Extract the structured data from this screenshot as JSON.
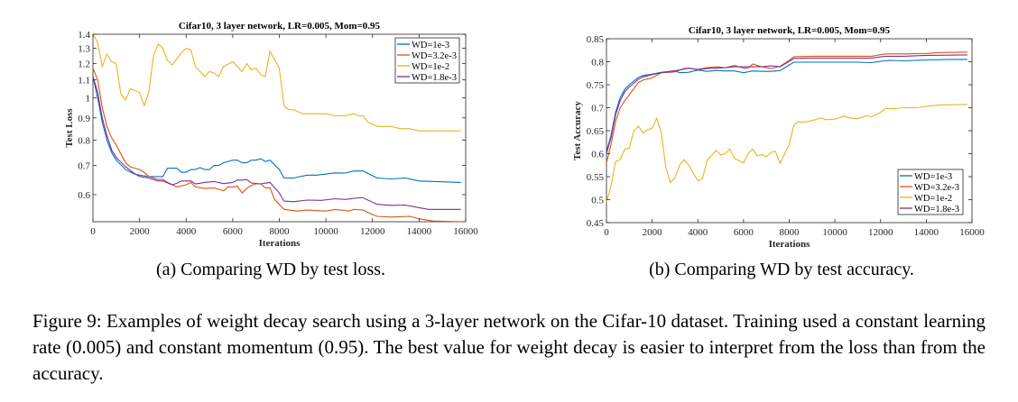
{
  "colors": {
    "WD=1e-3": "#0072BD",
    "WD=3.2e-3": "#D95319",
    "WD=1e-2": "#EDB120",
    "WD=1.8e-3": "#7E2F8E"
  },
  "subcaptions": {
    "a": "(a) Comparing WD by test loss.",
    "b": "(b) Comparing WD by test accuracy."
  },
  "figure_caption": "Figure 9: Examples of weight decay search using a 3-layer network on the Cifar-10 dataset. Training used a constant learning rate (0.005) and constant momentum (0.95). The best value for weight decay is easier to interpret from the loss than from the accuracy.",
  "chart_data": [
    {
      "type": "line",
      "title": "Cifar10, 3 layer network, LR=0.005, Mom=0.95",
      "xlabel": "Iterations",
      "ylabel": "Test Loss",
      "xlim": [
        0,
        16000
      ],
      "ylim": [
        0.52,
        1.4
      ],
      "yscale": "log",
      "xticks": [
        0,
        2000,
        4000,
        6000,
        8000,
        10000,
        12000,
        14000,
        16000
      ],
      "yticks": [
        0.6,
        0.7,
        0.8,
        0.9,
        1,
        1.1,
        1.2,
        1.3,
        1.4
      ],
      "yticklabels": [
        "0.6",
        "0.7",
        "0.8",
        "0.9",
        "1",
        "1.1",
        "1.2",
        "1.3",
        "1.4"
      ],
      "legend": "top-right",
      "series": [
        {
          "name": "WD=1e-3",
          "x": [
            0,
            200,
            400,
            600,
            800,
            1000,
            1400,
            1800,
            2000,
            2400,
            3000,
            3200,
            3600,
            3800,
            4000,
            4200,
            4400,
            4600,
            4800,
            5000,
            5200,
            5400,
            5600,
            6000,
            6200,
            6400,
            6600,
            6800,
            7000,
            7200,
            7400,
            7600,
            8000,
            8200,
            8600,
            9200,
            9600,
            10400,
            10800,
            11200,
            11600,
            12200,
            12800,
            13400,
            14000,
            15800
          ],
          "y": [
            1.12,
            1.0,
            0.88,
            0.8,
            0.75,
            0.72,
            0.685,
            0.668,
            0.665,
            0.66,
            0.66,
            0.69,
            0.69,
            0.675,
            0.675,
            0.685,
            0.685,
            0.692,
            0.685,
            0.685,
            0.7,
            0.7,
            0.71,
            0.72,
            0.72,
            0.71,
            0.71,
            0.72,
            0.72,
            0.725,
            0.715,
            0.72,
            0.685,
            0.655,
            0.655,
            0.665,
            0.665,
            0.673,
            0.672,
            0.68,
            0.68,
            0.655,
            0.652,
            0.655,
            0.645,
            0.64
          ]
        },
        {
          "name": "WD=3.2e-3",
          "x": [
            0,
            200,
            400,
            600,
            800,
            1000,
            1400,
            1600,
            2000,
            2200,
            2400,
            2800,
            3000,
            3200,
            3600,
            4000,
            4200,
            4400,
            4800,
            5200,
            5600,
            5800,
            6000,
            6200,
            6400,
            6600,
            6800,
            7000,
            7200,
            7400,
            7600,
            7800,
            8200,
            8800,
            9200,
            10000,
            10400,
            11000,
            11200,
            11600,
            12000,
            12200,
            12800,
            13600,
            14000,
            14600,
            15800
          ],
          "y": [
            1.17,
            1.1,
            0.95,
            0.86,
            0.81,
            0.78,
            0.71,
            0.695,
            0.685,
            0.675,
            0.66,
            0.65,
            0.65,
            0.64,
            0.625,
            0.632,
            0.64,
            0.625,
            0.62,
            0.622,
            0.612,
            0.625,
            0.625,
            0.628,
            0.605,
            0.62,
            0.63,
            0.635,
            0.635,
            0.622,
            0.622,
            0.585,
            0.555,
            0.55,
            0.553,
            0.55,
            0.555,
            0.55,
            0.555,
            0.553,
            0.54,
            0.535,
            0.533,
            0.535,
            0.528,
            0.522,
            0.52
          ]
        },
        {
          "name": "WD=1e-2",
          "x": [
            0,
            200,
            400,
            600,
            800,
            1000,
            1200,
            1400,
            1600,
            2000,
            2200,
            2400,
            2600,
            2800,
            3000,
            3200,
            3400,
            3800,
            4000,
            4200,
            4400,
            4800,
            5000,
            5200,
            5400,
            5600,
            6000,
            6400,
            6600,
            6800,
            7000,
            7200,
            7400,
            7600,
            8000,
            8200,
            8400,
            8600,
            8800,
            9000,
            9400,
            9600,
            10000,
            10400,
            10800,
            11200,
            11400,
            11600,
            11800,
            12000,
            12200,
            12800,
            13200,
            13600,
            14000,
            15000,
            15800
          ],
          "y": [
            1.4,
            1.34,
            1.18,
            1.26,
            1.21,
            1.2,
            1.02,
            0.99,
            1.05,
            1.03,
            0.96,
            1.03,
            1.25,
            1.33,
            1.3,
            1.22,
            1.19,
            1.27,
            1.3,
            1.29,
            1.18,
            1.12,
            1.15,
            1.14,
            1.12,
            1.18,
            1.21,
            1.15,
            1.2,
            1.16,
            1.17,
            1.13,
            1.12,
            1.28,
            1.17,
            0.96,
            0.94,
            0.94,
            0.93,
            0.92,
            0.92,
            0.92,
            0.92,
            0.91,
            0.91,
            0.92,
            0.91,
            0.91,
            0.88,
            0.87,
            0.86,
            0.86,
            0.85,
            0.85,
            0.84,
            0.84,
            0.84
          ]
        },
        {
          "name": "WD=1.8e-3",
          "x": [
            0,
            200,
            400,
            600,
            800,
            1000,
            1400,
            1800,
            2000,
            2400,
            2800,
            3000,
            3400,
            3600,
            3800,
            4200,
            4400,
            4800,
            5200,
            5600,
            6000,
            6200,
            6400,
            6600,
            6800,
            7200,
            7600,
            8000,
            8200,
            8600,
            9200,
            9800,
            10400,
            10800,
            11400,
            11600,
            12200,
            12800,
            13400,
            14000,
            14400,
            15800
          ],
          "y": [
            1.12,
            1.03,
            0.9,
            0.82,
            0.76,
            0.73,
            0.695,
            0.67,
            0.66,
            0.655,
            0.645,
            0.645,
            0.632,
            0.637,
            0.645,
            0.645,
            0.635,
            0.64,
            0.643,
            0.636,
            0.64,
            0.648,
            0.648,
            0.65,
            0.638,
            0.635,
            0.64,
            0.605,
            0.58,
            0.578,
            0.583,
            0.582,
            0.587,
            0.585,
            0.59,
            0.59,
            0.57,
            0.567,
            0.568,
            0.56,
            0.555,
            0.555
          ]
        }
      ]
    },
    {
      "type": "line",
      "title": "Cifar10, 3 layer network, LR=0.005, Mom=0.95",
      "xlabel": "Iterations",
      "ylabel": "Test Accuracy",
      "xlim": [
        0,
        16000
      ],
      "ylim": [
        0.45,
        0.85
      ],
      "yscale": "linear",
      "xticks": [
        0,
        2000,
        4000,
        6000,
        8000,
        10000,
        12000,
        14000,
        16000
      ],
      "yticks": [
        0.45,
        0.5,
        0.55,
        0.6,
        0.65,
        0.7,
        0.75,
        0.8,
        0.85
      ],
      "yticklabels": [
        "0.45",
        "0.5",
        "0.55",
        "0.6",
        "0.65",
        "0.7",
        "0.75",
        "0.8",
        "0.85"
      ],
      "legend": "bottom-right",
      "series": [
        {
          "name": "WD=1e-3",
          "x": [
            0,
            200,
            400,
            600,
            800,
            1000,
            1400,
            1600,
            2000,
            2400,
            2800,
            3000,
            3200,
            3600,
            4000,
            4400,
            4800,
            5200,
            5600,
            6000,
            6400,
            6800,
            7200,
            7600,
            8000,
            8200,
            9000,
            10000,
            11000,
            11600,
            12000,
            12400,
            13000,
            14000,
            15000,
            15800
          ],
          "y": [
            0.605,
            0.64,
            0.69,
            0.722,
            0.74,
            0.75,
            0.766,
            0.77,
            0.773,
            0.777,
            0.779,
            0.78,
            0.776,
            0.777,
            0.782,
            0.779,
            0.781,
            0.78,
            0.78,
            0.776,
            0.78,
            0.779,
            0.779,
            0.781,
            0.793,
            0.799,
            0.799,
            0.799,
            0.799,
            0.798,
            0.801,
            0.803,
            0.802,
            0.804,
            0.805,
            0.805
          ]
        },
        {
          "name": "WD=3.2e-3",
          "x": [
            0,
            200,
            400,
            600,
            800,
            1000,
            1400,
            1600,
            2000,
            2400,
            2800,
            3000,
            3400,
            3600,
            4000,
            4400,
            4800,
            5200,
            5600,
            6000,
            6200,
            6400,
            6800,
            7200,
            7600,
            8000,
            8200,
            9000,
            10000,
            11000,
            11600,
            12200,
            13000,
            14000,
            14600,
            15800
          ],
          "y": [
            0.58,
            0.62,
            0.67,
            0.7,
            0.715,
            0.728,
            0.755,
            0.76,
            0.765,
            0.776,
            0.777,
            0.778,
            0.785,
            0.786,
            0.783,
            0.787,
            0.789,
            0.787,
            0.792,
            0.786,
            0.786,
            0.795,
            0.789,
            0.785,
            0.79,
            0.803,
            0.811,
            0.812,
            0.812,
            0.812,
            0.812,
            0.817,
            0.817,
            0.818,
            0.82,
            0.821
          ]
        },
        {
          "name": "WD=1e-2",
          "x": [
            0,
            200,
            400,
            600,
            800,
            1000,
            1200,
            1400,
            1600,
            1800,
            2000,
            2200,
            2400,
            2600,
            2800,
            3000,
            3200,
            3400,
            3600,
            4000,
            4200,
            4400,
            4800,
            5000,
            5200,
            5400,
            5600,
            6000,
            6200,
            6400,
            6600,
            6800,
            7000,
            7200,
            7400,
            7600,
            8000,
            8200,
            8400,
            8600,
            9000,
            9400,
            9600,
            10000,
            10400,
            10600,
            11000,
            11400,
            11600,
            12000,
            12200,
            12600,
            13000,
            13600,
            14000,
            14600,
            15800
          ],
          "y": [
            0.495,
            0.53,
            0.583,
            0.587,
            0.61,
            0.612,
            0.65,
            0.66,
            0.645,
            0.652,
            0.655,
            0.677,
            0.645,
            0.57,
            0.537,
            0.548,
            0.575,
            0.587,
            0.575,
            0.541,
            0.545,
            0.585,
            0.607,
            0.597,
            0.6,
            0.61,
            0.59,
            0.58,
            0.6,
            0.61,
            0.595,
            0.598,
            0.593,
            0.603,
            0.605,
            0.579,
            0.62,
            0.662,
            0.67,
            0.668,
            0.672,
            0.678,
            0.674,
            0.675,
            0.682,
            0.678,
            0.676,
            0.683,
            0.68,
            0.69,
            0.698,
            0.698,
            0.7,
            0.7,
            0.703,
            0.706,
            0.707
          ]
        },
        {
          "name": "WD=1.8e-3",
          "x": [
            0,
            200,
            400,
            600,
            800,
            1000,
            1400,
            1600,
            2000,
            2400,
            2800,
            3200,
            3600,
            4000,
            4400,
            4800,
            5200,
            5600,
            6000,
            6400,
            6800,
            7200,
            7600,
            8000,
            8200,
            9000,
            10000,
            11000,
            11600,
            12200,
            13000,
            14000,
            15800
          ],
          "y": [
            0.6,
            0.635,
            0.685,
            0.715,
            0.735,
            0.745,
            0.762,
            0.767,
            0.772,
            0.776,
            0.779,
            0.782,
            0.786,
            0.783,
            0.785,
            0.786,
            0.787,
            0.789,
            0.789,
            0.789,
            0.789,
            0.791,
            0.789,
            0.801,
            0.807,
            0.808,
            0.808,
            0.808,
            0.808,
            0.812,
            0.812,
            0.814,
            0.815
          ]
        }
      ]
    }
  ]
}
